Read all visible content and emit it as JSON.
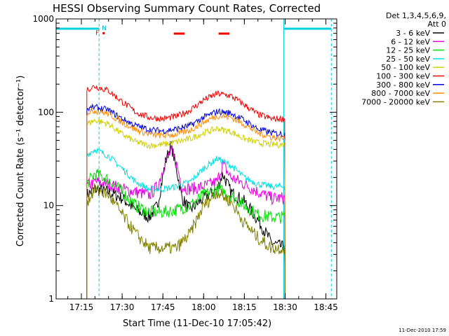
{
  "chart_data": {
    "type": "line",
    "title": "HESSI Observing Summary Count Rates, Corrected",
    "xlabel": "Start Time (11-Dec-10 17:05:42)",
    "ylabel": "Corrected Count Rate (s⁻¹ detector⁻¹)",
    "xlim": [
      "17:05:42",
      "18:49:00"
    ],
    "ylim": [
      1,
      1000
    ],
    "yscale": "log",
    "x_ticks": [
      "17:15",
      "17:30",
      "17:45",
      "18:00",
      "18:15",
      "18:30",
      "18:45"
    ],
    "y_ticks": [
      "1",
      "10",
      "100",
      "1000"
    ],
    "legend_title": "Det 1,3,4,5,6,9,",
    "legend_subtitle": "Att 0",
    "legend_position": "right",
    "timestamp": "11-Dec-2010 17:59",
    "flags": {
      "f_label": "F",
      "n_label": "N",
      "night_intervals": [
        [
          "17:05:42",
          "17:21:30"
        ],
        [
          "18:29:30",
          "18:47:00"
        ]
      ],
      "saa_intervals": [
        [
          "17:49:00",
          "17:53:00"
        ],
        [
          "18:05:30",
          "18:09:30"
        ]
      ],
      "flare_time": "17:21:00"
    },
    "series": [
      {
        "name": "3 - 6 keV",
        "color": "#000000",
        "t": [
          "17:17",
          "17:20",
          "17:25",
          "17:30",
          "17:35",
          "17:40",
          "17:43",
          "17:46",
          "17:48",
          "17:50",
          "17:52",
          "17:55",
          "18:00",
          "18:05",
          "18:07",
          "18:10",
          "18:15",
          "18:20",
          "18:25",
          "18:30"
        ],
        "v": [
          13,
          15,
          14,
          12,
          9,
          7.5,
          10,
          30,
          45,
          25,
          12,
          9,
          12,
          15,
          22,
          14,
          11,
          7,
          4,
          3.5
        ]
      },
      {
        "name": "6 - 12 keV",
        "color": "#e000e0",
        "t": [
          "17:17",
          "17:20",
          "17:25",
          "17:30",
          "17:35",
          "17:40",
          "17:43",
          "17:46",
          "17:48",
          "17:50",
          "17:52",
          "17:55",
          "18:00",
          "18:05",
          "18:07",
          "18:10",
          "18:15",
          "18:20",
          "18:25",
          "18:30"
        ],
        "v": [
          16,
          18,
          17,
          15,
          14,
          13,
          16,
          30,
          38,
          28,
          16,
          15,
          16,
          18,
          28,
          20,
          17,
          14,
          12,
          12
        ]
      },
      {
        "name": "12 - 25 keV",
        "color": "#00e000",
        "t": [
          "17:17",
          "17:20",
          "17:25",
          "17:30",
          "17:35",
          "17:40",
          "17:45",
          "17:50",
          "17:55",
          "18:00",
          "18:05",
          "18:10",
          "18:15",
          "18:20",
          "18:25",
          "18:30"
        ],
        "v": [
          17,
          22,
          19,
          14,
          10,
          8.5,
          8.5,
          9,
          10,
          13,
          15,
          13,
          10,
          8,
          7.5,
          7.5
        ]
      },
      {
        "name": "25 - 50 keV",
        "color": "#00e0e0",
        "t": [
          "17:17",
          "17:20",
          "17:25",
          "17:30",
          "17:35",
          "17:40",
          "17:45",
          "17:50",
          "17:55",
          "18:00",
          "18:05",
          "18:10",
          "18:15",
          "18:20",
          "18:25",
          "18:30"
        ],
        "v": [
          35,
          40,
          34,
          25,
          18,
          15,
          15,
          16,
          18,
          25,
          32,
          27,
          20,
          17,
          16,
          16
        ]
      },
      {
        "name": "50 - 100 keV",
        "color": "#d0d000",
        "t": [
          "17:17",
          "17:20",
          "17:25",
          "17:30",
          "17:35",
          "17:40",
          "17:45",
          "17:50",
          "17:55",
          "18:00",
          "18:05",
          "18:10",
          "18:15",
          "18:20",
          "18:25",
          "18:30"
        ],
        "v": [
          75,
          82,
          75,
          58,
          48,
          44,
          45,
          48,
          52,
          60,
          67,
          62,
          52,
          47,
          45,
          45
        ]
      },
      {
        "name": "100 - 300 keV",
        "color": "#ee0000",
        "t": [
          "17:17",
          "17:20",
          "17:25",
          "17:30",
          "17:35",
          "17:40",
          "17:45",
          "17:50",
          "17:55",
          "18:00",
          "18:05",
          "18:10",
          "18:15",
          "18:20",
          "18:25",
          "18:30"
        ],
        "v": [
          175,
          190,
          170,
          130,
          100,
          88,
          85,
          90,
          105,
          135,
          158,
          150,
          120,
          95,
          85,
          85
        ]
      },
      {
        "name": "300 - 800 keV",
        "color": "#0000e0",
        "t": [
          "17:17",
          "17:20",
          "17:25",
          "17:30",
          "17:35",
          "17:40",
          "17:45",
          "17:50",
          "17:55",
          "18:00",
          "18:05",
          "18:10",
          "18:15",
          "18:20",
          "18:25",
          "18:30"
        ],
        "v": [
          108,
          113,
          105,
          85,
          72,
          65,
          63,
          66,
          72,
          88,
          102,
          98,
          82,
          66,
          60,
          58
        ]
      },
      {
        "name": "800 - 7000 keV",
        "color": "#ff8c00",
        "t": [
          "17:17",
          "17:20",
          "17:25",
          "17:30",
          "17:35",
          "17:40",
          "17:45",
          "17:50",
          "17:55",
          "18:00",
          "18:05",
          "18:10",
          "18:15",
          "18:20",
          "18:25",
          "18:30"
        ],
        "v": [
          100,
          104,
          96,
          78,
          65,
          58,
          56,
          58,
          64,
          78,
          92,
          88,
          74,
          60,
          54,
          52
        ]
      },
      {
        "name": "7000 - 20000 keV",
        "color": "#808000",
        "t": [
          "17:17",
          "17:20",
          "17:25",
          "17:30",
          "17:35",
          "17:40",
          "17:45",
          "17:50",
          "17:55",
          "18:00",
          "18:05",
          "18:10",
          "18:15",
          "18:20",
          "18:25",
          "18:30"
        ],
        "v": [
          11,
          15,
          13,
          8,
          5,
          3.5,
          3.5,
          3.5,
          5,
          10,
          14,
          11,
          6.5,
          4.5,
          3.5,
          3.5
        ]
      }
    ]
  }
}
